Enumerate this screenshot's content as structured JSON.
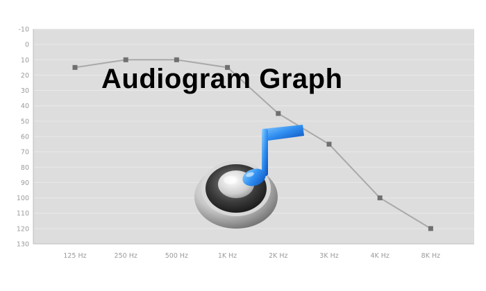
{
  "title": "Audiogram Graph",
  "colors": {
    "plot_background": "#dddddd",
    "gridline": "#e9e9e9",
    "axis": "#bdbdbd",
    "tick_label": "#9a9a9a",
    "series_line": "#a9a9a9",
    "marker": "#707070"
  },
  "icons": [
    "speaker-icon",
    "music-note-icon"
  ],
  "chart_data": {
    "type": "line",
    "title": "Audiogram Graph",
    "xlabel": "",
    "ylabel": "",
    "categories": [
      "125 Hz",
      "250 Hz",
      "500 Hz",
      "1K Hz",
      "2K Hz",
      "3K Hz",
      "4K Hz",
      "8K Hz"
    ],
    "series": [
      {
        "values": [
          15,
          10,
          10,
          15,
          45,
          65,
          100,
          120
        ]
      }
    ],
    "ylim": [
      -10,
      130
    ],
    "y_reversed": true,
    "yticks": [
      "-10",
      "0",
      "10",
      "20",
      "30",
      "40",
      "50",
      "60",
      "70",
      "80",
      "90",
      "100",
      "110",
      "120",
      "130"
    ],
    "grid": true,
    "legend": "none"
  }
}
